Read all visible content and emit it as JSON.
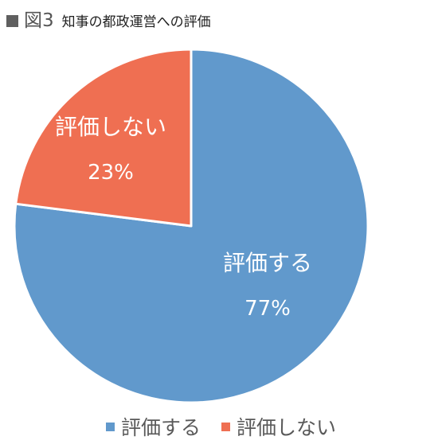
{
  "header": {
    "figure_label": "図3",
    "title": "知事の都政運営への評価"
  },
  "chart_data": {
    "type": "pie",
    "title": "知事の都政運営への評価",
    "slices": [
      {
        "label": "評価する",
        "value": 77,
        "value_label": "77%",
        "color": "#6199CC"
      },
      {
        "label": "評価しない",
        "value": 23,
        "value_label": "23%",
        "color": "#EF6F52"
      }
    ],
    "start_angle_deg": 0,
    "direction": "clockwise",
    "legend_position": "bottom",
    "data_labels": "inside"
  }
}
